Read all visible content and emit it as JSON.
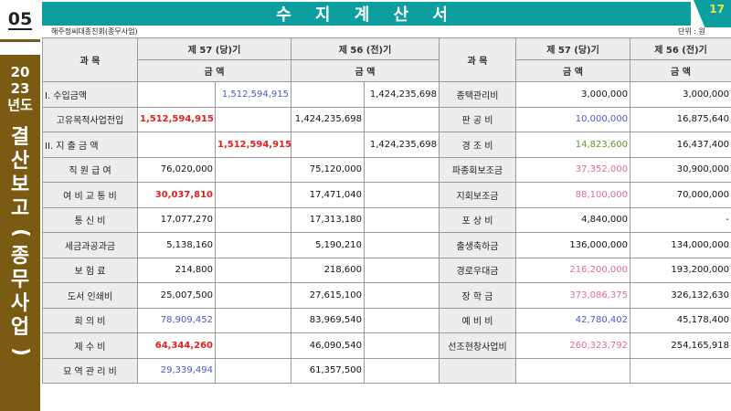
{
  "section_number": "05",
  "page_number": "17",
  "title": "수 지 계 산 서",
  "org_name": "해주정씨대종친회(종무사업)",
  "unit": "단위 : 원",
  "sidebar": {
    "year_lines": [
      "20",
      "23",
      "년도"
    ],
    "vertical_text": [
      "결",
      "산",
      "보",
      "고"
    ],
    "paren_open": "(",
    "paren_close": ")",
    "sub_text": [
      "종",
      "무",
      "사",
      "업"
    ]
  },
  "headers": {
    "subject": "과 목",
    "cur_period": "제 57 (당)기",
    "prev_period": "제 56 (전)기",
    "amount": "금 액"
  },
  "left_rows": [
    {
      "label": "I. 수입금액",
      "c1": "",
      "c2": "1,512,594,915",
      "p1": "",
      "p2": "1,424,235,698"
    },
    {
      "label": "고유목적사업전입",
      "c1": "1,512,594,915",
      "c2": "",
      "p1": "1,424,235,698",
      "p2": ""
    },
    {
      "label": "II. 지 출 금 액",
      "c1": "",
      "c2": "1,512,594,915",
      "p1": "",
      "p2": "1,424,235,698"
    },
    {
      "label": "직 원 급 여",
      "c1": "76,020,000",
      "c2": "",
      "p1": "75,120,000",
      "p2": ""
    },
    {
      "label": "여 비 교 통 비",
      "c1": "30,037,810",
      "c2": "",
      "p1": "17,471,040",
      "p2": ""
    },
    {
      "label": "통 신 비",
      "c1": "17,077,270",
      "c2": "",
      "p1": "17,313,180",
      "p2": ""
    },
    {
      "label": "세금과공과금",
      "c1": "5,138,160",
      "c2": "",
      "p1": "5,190,210",
      "p2": ""
    },
    {
      "label": "보 험 료",
      "c1": "214,800",
      "c2": "",
      "p1": "218,600",
      "p2": ""
    },
    {
      "label": "도서 인쇄비",
      "c1": "25,007,500",
      "c2": "",
      "p1": "27,615,100",
      "p2": ""
    },
    {
      "label": "회 의 비",
      "c1": "78,909,452",
      "c2": "",
      "p1": "83,969,540",
      "p2": ""
    },
    {
      "label": "제 수 비",
      "c1": "64,344,260",
      "c2": "",
      "p1": "46,090,540",
      "p2": ""
    },
    {
      "label": "묘 역 관 리 비",
      "c1": "29,339,494",
      "c2": "",
      "p1": "61,357,500",
      "p2": ""
    }
  ],
  "right_rows": [
    {
      "label": "종택관리비",
      "cur": "3,000,000",
      "prev": "3,000,000"
    },
    {
      "label": "판 공 비",
      "cur": "10,000,000",
      "prev": "16,875,640"
    },
    {
      "label": "경 조 비",
      "cur": "14,823,600",
      "prev": "16,437,400"
    },
    {
      "label": "파종회보조금",
      "cur": "37,352,000",
      "prev": "30,900,000"
    },
    {
      "label": "지회보조금",
      "cur": "88,100,000",
      "prev": "70,000,000"
    },
    {
      "label": "포 상 비",
      "cur": "4,840,000",
      "prev": "-"
    },
    {
      "label": "출생축하금",
      "cur": "136,000,000",
      "prev": "134,000,000"
    },
    {
      "label": "경로우대금",
      "cur": "216,200,000",
      "prev": "193,200,000"
    },
    {
      "label": "장 학 금",
      "cur": "373,086,375",
      "prev": "326,132,630"
    },
    {
      "label": "예 비 비",
      "cur": "42,780,402",
      "prev": "45,178,400"
    },
    {
      "label": "선조현창사업비",
      "cur": "260,323,792",
      "prev": "254,165,918"
    },
    {
      "label": "",
      "cur": "",
      "prev": ""
    }
  ],
  "colors": {
    "header_teal": "#0d9ea0",
    "sidebar_brown": "#7b5a14",
    "red": "#e02020",
    "blue": "#4a58c8",
    "green": "#5a9a2a",
    "pink": "#e06a9a"
  }
}
